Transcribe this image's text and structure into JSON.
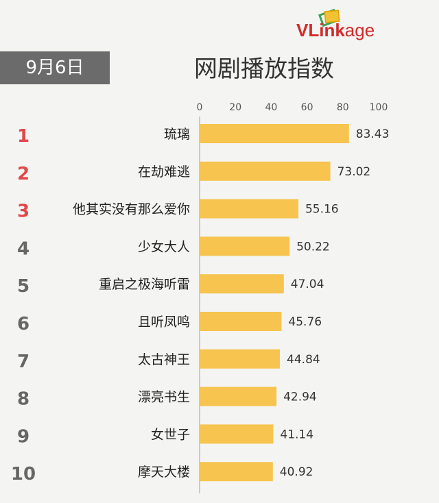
{
  "header": {
    "date": "9月6日",
    "title": "网剧播放指数",
    "logo": "VLinkage",
    "logo_part1": "VLink",
    "logo_part2": "age"
  },
  "colors": {
    "bar": "#f6c44f",
    "rank_top": "#e0484b",
    "rank_other": "#666666",
    "axis": "#bbbbbb",
    "brand": "#d22a2a"
  },
  "chart_data": {
    "type": "bar",
    "orientation": "horizontal",
    "title": "网剧播放指数",
    "xlim": [
      0,
      100
    ],
    "x_ticks": [
      "0",
      "20",
      "40",
      "60",
      "80",
      "100"
    ],
    "ranks": [
      "1",
      "2",
      "3",
      "4",
      "5",
      "6",
      "7",
      "8",
      "9",
      "10"
    ],
    "categories": [
      "琉璃",
      "在劫难逃",
      "他其实没有那么爱你",
      "少女大人",
      "重启之极海听雷",
      "且听凤鸣",
      "太古神王",
      "漂亮书生",
      "女世子",
      "摩天大楼"
    ],
    "values": [
      83.43,
      73.02,
      55.16,
      50.22,
      47.04,
      45.76,
      44.84,
      42.94,
      41.14,
      40.92
    ],
    "value_labels": [
      "83.43",
      "73.02",
      "55.16",
      "50.22",
      "47.04",
      "45.76",
      "44.84",
      "42.94",
      "41.14",
      "40.92"
    ],
    "grid": false,
    "legend": "none"
  }
}
